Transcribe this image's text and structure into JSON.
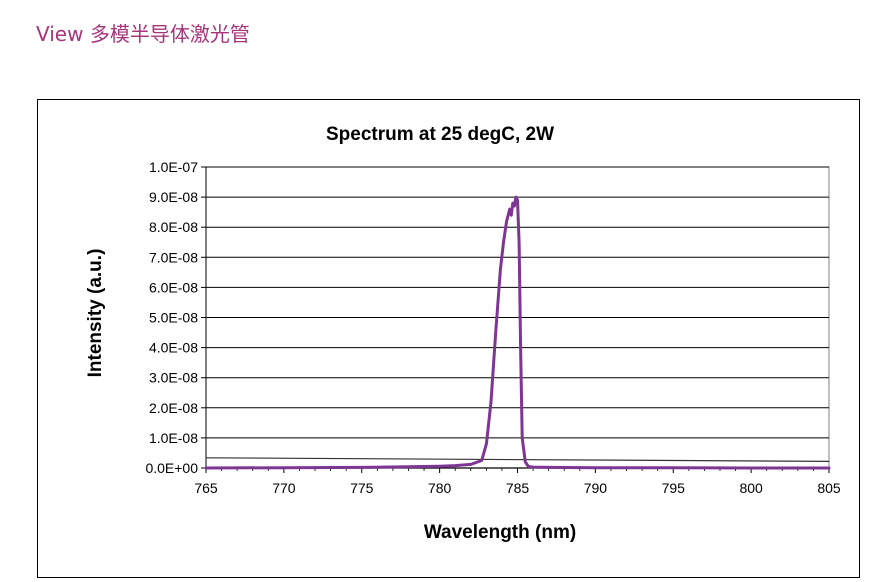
{
  "page": {
    "heading": "View 多模半导体激光管"
  },
  "chart_data": {
    "type": "line",
    "title": "Spectrum at 25 degC, 2W",
    "xlabel": "Wavelength (nm)",
    "ylabel": "Intensity (a.u.)",
    "xlim": [
      765,
      805
    ],
    "ylim": [
      0,
      1e-07
    ],
    "x_ticks": [
      765,
      770,
      775,
      780,
      785,
      790,
      795,
      800,
      805
    ],
    "x_tick_labels": [
      "765",
      "770",
      "775",
      "780",
      "785",
      "790",
      "795",
      "800",
      "805"
    ],
    "y_ticks": [
      0,
      1e-08,
      2e-08,
      3e-08,
      4e-08,
      5e-08,
      6e-08,
      7e-08,
      8e-08,
      9e-08,
      1e-07
    ],
    "y_tick_labels": [
      "0.0E+00",
      "1.0E-08",
      "2.0E-08",
      "3.0E-08",
      "4.0E-08",
      "5.0E-08",
      "6.0E-08",
      "7.0E-08",
      "8.0E-08",
      "9.0E-08",
      "1.0E-07"
    ],
    "grid": "horizontal",
    "legend": "none",
    "series": [
      {
        "color": "#7e3594",
        "x": [
          765,
          770,
          775,
          778,
          780,
          781,
          782,
          782.7,
          783.0,
          783.3,
          783.6,
          783.9,
          784.1,
          784.3,
          784.5,
          784.6,
          784.7,
          784.8,
          784.9,
          785.0,
          785.1,
          785.2,
          785.3,
          785.5,
          785.7,
          786.0,
          787,
          790,
          795,
          800,
          805
        ],
        "y": [
          0,
          1e-10,
          2e-10,
          4e-10,
          6e-10,
          8e-10,
          1.2e-09,
          2.5e-09,
          8e-09,
          2.2e-08,
          4.5e-08,
          6.6e-08,
          7.5e-08,
          8.2e-08,
          8.6e-08,
          8.4e-08,
          8.8e-08,
          8.7e-08,
          9e-08,
          8.9e-08,
          7.5e-08,
          4e-08,
          1e-08,
          2e-09,
          5e-10,
          3e-10,
          2e-10,
          1e-10,
          1e-10,
          0,
          0
        ]
      },
      {
        "color": "#333333",
        "x": [
          765,
          805
        ],
        "y": [
          3.4e-09,
          2.2e-09
        ]
      }
    ]
  }
}
